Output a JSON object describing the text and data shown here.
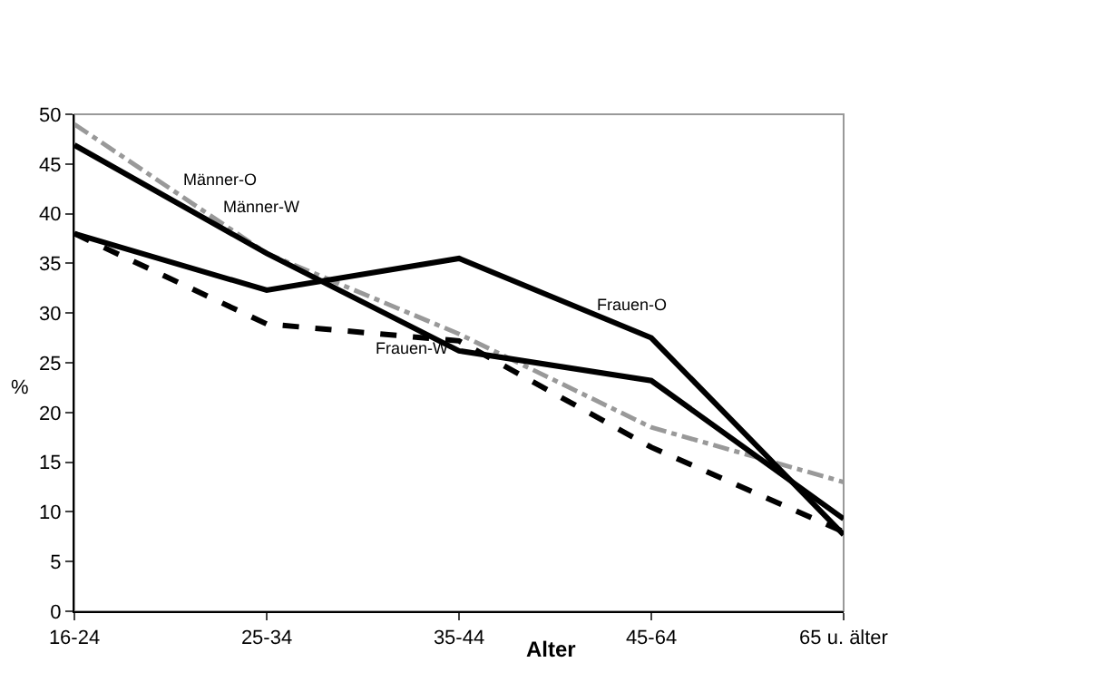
{
  "chart_data": {
    "type": "line",
    "xlabel": "Alter",
    "ylabel": "%",
    "categories": [
      "16-24",
      "25-34",
      "35-44",
      "45-64",
      "65 u. älter"
    ],
    "ylim": [
      0,
      50
    ],
    "yticks": [
      0,
      5,
      10,
      15,
      20,
      25,
      30,
      35,
      40,
      45,
      50
    ],
    "grid": false,
    "legend": false,
    "marker": "none",
    "series": [
      {
        "name": "Männer-O",
        "color": "#999999",
        "line_style": "dashdot",
        "values": [
          49,
          36,
          27.9,
          18.5,
          13
        ]
      },
      {
        "name": "Männer-W",
        "color": "#000000",
        "line_style": "solid",
        "values": [
          46.9,
          36,
          26.2,
          23.2,
          9.3
        ]
      },
      {
        "name": "Frauen-W",
        "color": "#000000",
        "line_style": "dashed",
        "values": [
          38,
          28.9,
          27.2,
          16.5,
          8
        ]
      },
      {
        "name": "Frauen-O",
        "color": "#000000",
        "line_style": "solid",
        "values": [
          38,
          32.3,
          35.5,
          27.5,
          7.7
        ]
      }
    ]
  }
}
